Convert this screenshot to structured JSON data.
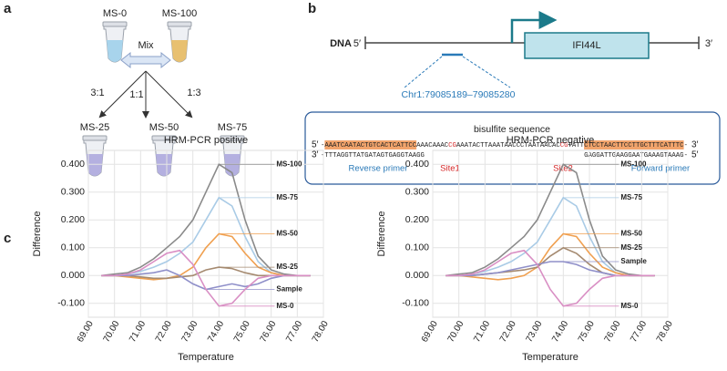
{
  "panel_labels": [
    "a",
    "b",
    "c"
  ],
  "panel_a": {
    "top": [
      "MS-0",
      "MS-100"
    ],
    "mix": "Mix",
    "ratios": [
      "3:1",
      "1:1",
      "1:3"
    ],
    "bottom": [
      "MS-25",
      "MS-50",
      "MS-75"
    ]
  },
  "panel_b": {
    "dna": "DNA",
    "five": "5′",
    "three": "3′",
    "gene": "IFI44L",
    "locus": "Chr1:79085189–79085280",
    "box_title": "bisulfite sequence",
    "top_strand": {
      "start": "5′",
      "segments": [
        {
          "text": "-"
        },
        {
          "text": "AAATCAATACTGTCACTCATTCC",
          "bg": "#f2a46c"
        },
        {
          "text": "AAACAAAC"
        },
        {
          "text": "CG",
          "color": "#d62728"
        },
        {
          "text": "AAATACTTAAATAACCCTAATAACAC"
        },
        {
          "text": "CG",
          "color": "#d62728"
        },
        {
          "text": "TATT"
        },
        {
          "text": "CTCCTAACTTCCTTGCTTTCATTTC",
          "bg": "#f2a46c"
        },
        {
          "text": "-"
        }
      ],
      "end": "3′"
    },
    "bottom_strand": {
      "start": "3′",
      "left": "-TTTAGGTTATGATAGTGAGGTAAGG",
      "right": "GAGGATTGAAGGAATGAAAGTAAAG-",
      "end": "5′"
    },
    "reverse_primer": "Reverse primer",
    "site1": "Site1",
    "site2": "Site2",
    "forward_primer": "Forward primer"
  },
  "chart_data": [
    {
      "type": "line",
      "title": "HRM-PCR positive",
      "x_label": "Temperature",
      "y_label": "Difference",
      "x": [
        69.5,
        70,
        70.5,
        71,
        71.5,
        72,
        72.5,
        73,
        73.5,
        74,
        74.5,
        75,
        75.5,
        76,
        76.5,
        77,
        77.5
      ],
      "xlim": [
        69,
        78
      ],
      "ylim": [
        -0.15,
        0.45
      ],
      "grid": true,
      "xticks": [
        {
          "value": 69,
          "label": "69.00"
        },
        {
          "value": 70,
          "label": "70.00"
        },
        {
          "value": 71,
          "label": "71.00"
        },
        {
          "value": 72,
          "label": "72.00"
        },
        {
          "value": 73,
          "label": "73.00"
        },
        {
          "value": 74,
          "label": "74.00"
        },
        {
          "value": 75,
          "label": "75.00"
        },
        {
          "value": 76,
          "label": "76.00"
        },
        {
          "value": 77,
          "label": "77.00"
        },
        {
          "value": 78,
          "label": "78.00"
        }
      ],
      "yticks": [
        {
          "value": -0.1,
          "label": "-0.100"
        },
        {
          "value": 0,
          "label": "0.000"
        },
        {
          "value": 0.1,
          "label": "0.100"
        },
        {
          "value": 0.2,
          "label": "0.200"
        },
        {
          "value": 0.3,
          "label": "0.300"
        },
        {
          "value": 0.4,
          "label": "0.400"
        }
      ],
      "series": [
        {
          "name": "MS-100",
          "color": "#8a8a8a",
          "values": [
            0,
            0.005,
            0.01,
            0.03,
            0.06,
            0.1,
            0.14,
            0.2,
            0.3,
            0.4,
            0.37,
            0.2,
            0.07,
            0.02,
            0.005,
            0,
            0
          ]
        },
        {
          "name": "MS-75",
          "color": "#a9cbe6",
          "values": [
            0,
            0,
            0.005,
            0.015,
            0.03,
            0.05,
            0.08,
            0.12,
            0.2,
            0.28,
            0.25,
            0.14,
            0.05,
            0.01,
            0,
            0,
            0
          ]
        },
        {
          "name": "MS-50",
          "color": "#f0a050",
          "values": [
            0,
            0,
            -0.005,
            -0.01,
            -0.015,
            -0.01,
            0,
            0.03,
            0.1,
            0.15,
            0.14,
            0.08,
            0.03,
            0.01,
            0,
            0,
            0
          ]
        },
        {
          "name": "MS-25",
          "color": "#a58a70",
          "values": [
            0,
            0,
            0,
            -0.005,
            -0.01,
            -0.01,
            -0.005,
            0,
            0.02,
            0.03,
            0.025,
            0.01,
            0,
            0,
            0,
            0,
            0
          ]
        },
        {
          "name": "Sample",
          "color": "#8f8fc9",
          "values": [
            0,
            0,
            0,
            0.005,
            0.01,
            0.02,
            0,
            -0.03,
            -0.05,
            -0.04,
            -0.03,
            -0.04,
            -0.03,
            -0.01,
            0,
            0,
            0
          ]
        },
        {
          "name": "MS-0",
          "color": "#d98fc4",
          "values": [
            0,
            0,
            0.005,
            0.02,
            0.05,
            0.08,
            0.09,
            0.04,
            -0.05,
            -0.11,
            -0.1,
            -0.05,
            -0.01,
            0,
            0,
            0,
            0
          ]
        }
      ]
    },
    {
      "type": "line",
      "title": "HRM-PCR negative",
      "x_label": "Temperature",
      "y_label": "Difference",
      "x": [
        69.5,
        70,
        70.5,
        71,
        71.5,
        72,
        72.5,
        73,
        73.5,
        74,
        74.5,
        75,
        75.5,
        76,
        76.5,
        77,
        77.5
      ],
      "xlim": [
        69,
        78
      ],
      "ylim": [
        -0.15,
        0.45
      ],
      "grid": true,
      "xticks": [
        {
          "value": 69,
          "label": "69.00"
        },
        {
          "value": 70,
          "label": "70.00"
        },
        {
          "value": 71,
          "label": "71.00"
        },
        {
          "value": 72,
          "label": "72.00"
        },
        {
          "value": 73,
          "label": "73.00"
        },
        {
          "value": 74,
          "label": "74.00"
        },
        {
          "value": 75,
          "label": "75.00"
        },
        {
          "value": 76,
          "label": "76.00"
        },
        {
          "value": 77,
          "label": "77.00"
        },
        {
          "value": 78,
          "label": "78.00"
        }
      ],
      "yticks": [
        {
          "value": -0.1,
          "label": "-0.100"
        },
        {
          "value": 0,
          "label": "0.000"
        },
        {
          "value": 0.1,
          "label": "0.100"
        },
        {
          "value": 0.2,
          "label": "0.200"
        },
        {
          "value": 0.3,
          "label": "0.300"
        },
        {
          "value": 0.4,
          "label": "0.400"
        }
      ],
      "series": [
        {
          "name": "MS-100",
          "color": "#8a8a8a",
          "values": [
            0,
            0.005,
            0.01,
            0.03,
            0.06,
            0.1,
            0.14,
            0.2,
            0.3,
            0.4,
            0.37,
            0.2,
            0.07,
            0.02,
            0.005,
            0,
            0
          ]
        },
        {
          "name": "MS-75",
          "color": "#a9cbe6",
          "values": [
            0,
            0,
            0.005,
            0.015,
            0.03,
            0.05,
            0.08,
            0.12,
            0.2,
            0.28,
            0.25,
            0.14,
            0.05,
            0.01,
            0,
            0,
            0
          ]
        },
        {
          "name": "MS-50",
          "color": "#f0a050",
          "values": [
            0,
            0,
            -0.005,
            -0.01,
            -0.015,
            -0.01,
            0,
            0.03,
            0.1,
            0.15,
            0.14,
            0.08,
            0.03,
            0.01,
            0,
            0,
            0
          ]
        },
        {
          "name": "MS-25",
          "color": "#a58a70",
          "values": [
            0,
            0,
            0,
            0.005,
            0.01,
            0.015,
            0.02,
            0.03,
            0.07,
            0.1,
            0.08,
            0.04,
            0.01,
            0,
            0,
            0,
            0
          ]
        },
        {
          "name": "Sample",
          "color": "#8f8fc9",
          "values": [
            0,
            0,
            0,
            0.005,
            0.01,
            0.02,
            0.03,
            0.04,
            0.05,
            0.05,
            0.04,
            0.02,
            0.01,
            0,
            0,
            0,
            0
          ]
        },
        {
          "name": "MS-0",
          "color": "#d98fc4",
          "values": [
            0,
            0,
            0.005,
            0.02,
            0.05,
            0.08,
            0.09,
            0.04,
            -0.05,
            -0.11,
            -0.1,
            -0.05,
            -0.01,
            0,
            0,
            0,
            0
          ]
        }
      ]
    }
  ]
}
